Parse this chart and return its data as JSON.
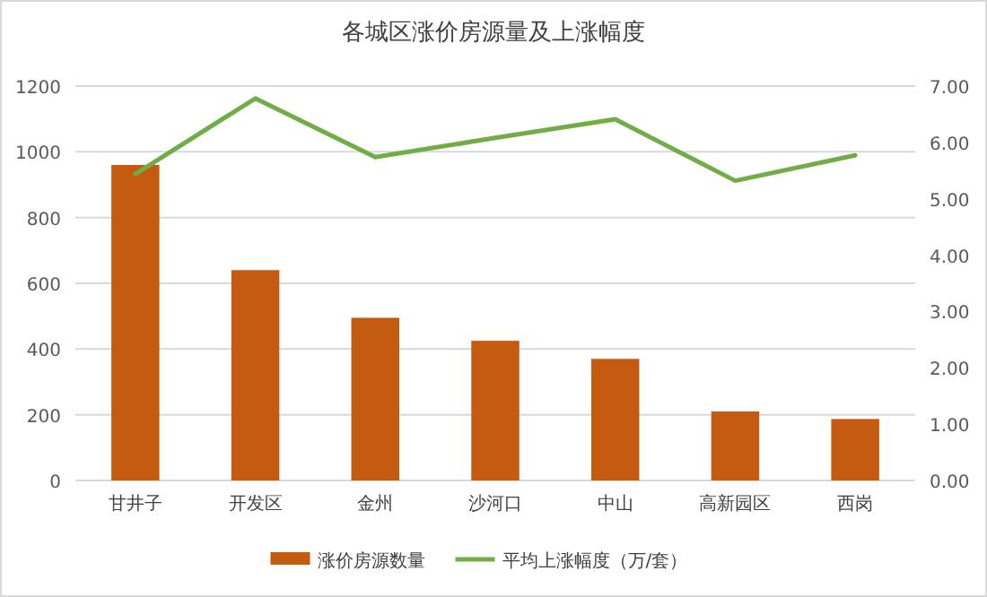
{
  "chart_data": {
    "type": "bar",
    "title": "各城区涨价房源量及上涨幅度",
    "categories": [
      "甘井子",
      "开发区",
      "金州",
      "沙河口",
      "中山",
      "高新园区",
      "西岗"
    ],
    "series": [
      {
        "name": "涨价房源数量",
        "color": "#c55a11",
        "values": [
          960,
          640,
          495,
          425,
          370,
          210,
          187
        ]
      },
      {
        "name": "平均上涨幅度（万/套）",
        "type": "line",
        "axis": "y2",
        "color": "#70ad47",
        "values": [
          5.44,
          6.78,
          5.74,
          6.08,
          6.41,
          5.32,
          5.77
        ]
      }
    ],
    "ylim": [
      0,
      1200
    ],
    "yticks": [
      0,
      200,
      400,
      600,
      800,
      1000,
      1200
    ],
    "y2lim": [
      0,
      7
    ],
    "y2ticks": [
      {
        "value": 0,
        "label": "0.00"
      },
      {
        "value": 1,
        "label": "1.00"
      },
      {
        "value": 2,
        "label": "2.00"
      },
      {
        "value": 3,
        "label": "3.00"
      },
      {
        "value": 4,
        "label": "4.00"
      },
      {
        "value": 5,
        "label": "5.00"
      },
      {
        "value": 6,
        "label": "6.00"
      },
      {
        "value": 7,
        "label": "7.00"
      }
    ],
    "grid": "y",
    "legend": "bottom"
  }
}
